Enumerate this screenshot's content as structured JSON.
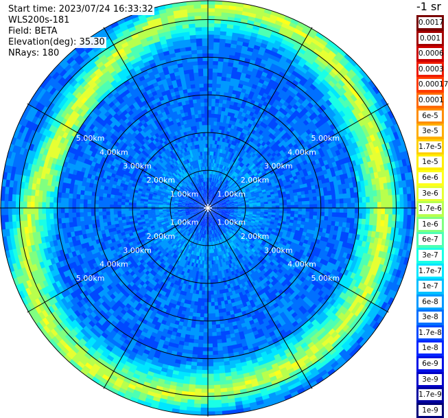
{
  "header": {
    "start_time": "Start time: 2023/07/24 16:33:32",
    "instrument": "WLS200s-181",
    "field": "Field: BETA",
    "elevation": "Elevation(deg): 35.30",
    "nrays": "NRays: 180"
  },
  "unit_label": "-1 sr",
  "chart_data": {
    "type": "heatmap",
    "projection": "polar PPI",
    "field": "BETA",
    "max_range_km": 5.5,
    "range_rings_km": [
      1.0,
      2.0,
      3.0,
      4.0,
      5.0
    ],
    "ring_labels": [
      "1.00km",
      "2.00km",
      "3.00km",
      "4.00km",
      "5.00km"
    ],
    "n_rays": 180,
    "azimuth_lines_deg": [
      0,
      30,
      60,
      90,
      120,
      150,
      180,
      210,
      240,
      270,
      300,
      330
    ],
    "colorscale": {
      "ticks": [
        "0.0017",
        "0.001",
        "0.0006",
        "0.0003",
        "0.00017",
        "0.0001",
        "6e-5",
        "3e-5",
        "1.7e-5",
        "1e-5",
        "6e-6",
        "3e-6",
        "1.7e-6",
        "1e-6",
        "6e-7",
        "3e-7",
        "1.7e-7",
        "1e-7",
        "6e-8",
        "3e-8",
        "1.7e-8",
        "1e-8",
        "6e-9",
        "3e-9",
        "1.7e-9",
        "1e-9"
      ],
      "colors": [
        "#7a0000",
        "#a30000",
        "#cc0000",
        "#ee1a00",
        "#ff3a00",
        "#ff6a00",
        "#ff8c00",
        "#ffae00",
        "#ffd000",
        "#ffee00",
        "#ffff1a",
        "#e6ff33",
        "#b8ff4d",
        "#80ff80",
        "#4dffb3",
        "#1affe6",
        "#00e6ff",
        "#00c0ff",
        "#0099ff",
        "#0070ff",
        "#0048ff",
        "#0026ff",
        "#0010e6",
        "#0000c8",
        "#0000a0",
        "#000078"
      ]
    },
    "profile": [
      {
        "range_km": 0.0,
        "beta": "1.7e-8"
      },
      {
        "range_km": 0.5,
        "beta": "1.7e-8"
      },
      {
        "range_km": 1.0,
        "beta": "6e-8"
      },
      {
        "range_km": 2.0,
        "beta": "3e-8"
      },
      {
        "range_km": 3.0,
        "beta": "3e-8"
      },
      {
        "range_km": 4.0,
        "beta": "3e-8"
      },
      {
        "range_km": 4.9,
        "beta": "3e-6"
      },
      {
        "range_km": 5.5,
        "beta": "3e-8"
      }
    ]
  }
}
